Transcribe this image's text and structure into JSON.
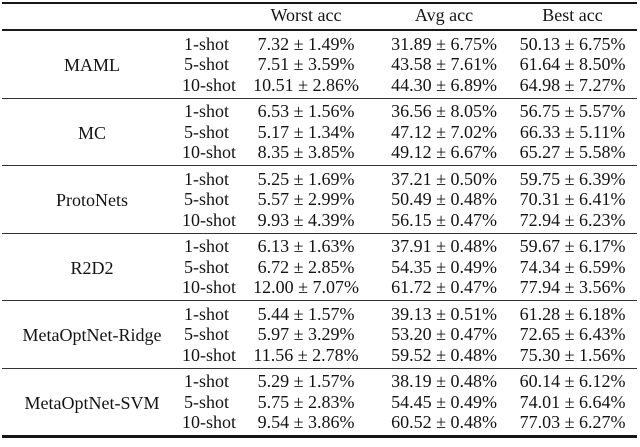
{
  "table": {
    "column_headers": {
      "worst": "Worst acc",
      "avg": "Avg acc",
      "best": "Best acc"
    },
    "sections": [
      {
        "method": "MAML",
        "rows": [
          {
            "shot": "1-shot",
            "worst": "7.32 ± 1.49%",
            "avg": "31.89 ± 6.75%",
            "best": "50.13 ± 6.75%"
          },
          {
            "shot": "5-shot",
            "worst": "7.51 ± 3.59%",
            "avg": "43.58 ± 7.61%",
            "best": "61.64 ± 8.50%"
          },
          {
            "shot": "10-shot",
            "worst": "10.51 ± 2.86%",
            "avg": "44.30 ± 6.89%",
            "best": "64.98 ± 7.27%"
          }
        ]
      },
      {
        "method": "MC",
        "rows": [
          {
            "shot": "1-shot",
            "worst": "6.53 ± 1.56%",
            "avg": "36.56 ± 8.05%",
            "best": "56.75 ± 5.57%"
          },
          {
            "shot": "5-shot",
            "worst": "5.17 ± 1.34%",
            "avg": "47.12 ± 7.02%",
            "best": "66.33 ± 5.11%"
          },
          {
            "shot": "10-shot",
            "worst": "8.35 ± 3.85%",
            "avg": "49.12 ± 6.67%",
            "best": "65.27 ± 5.58%"
          }
        ]
      },
      {
        "method": "ProtoNets",
        "rows": [
          {
            "shot": "1-shot",
            "worst": "5.25 ± 1.69%",
            "avg": "37.21 ± 0.50%",
            "best": "59.75 ± 6.39%"
          },
          {
            "shot": "5-shot",
            "worst": "5.57 ± 2.99%",
            "avg": "50.49 ± 0.48%",
            "best": "70.31 ± 6.41%"
          },
          {
            "shot": "10-shot",
            "worst": "9.93 ± 4.39%",
            "avg": "56.15 ± 0.47%",
            "best": "72.94 ± 6.23%"
          }
        ]
      },
      {
        "method": "R2D2",
        "rows": [
          {
            "shot": "1-shot",
            "worst": "6.13 ± 1.63%",
            "avg": "37.91 ± 0.48%",
            "best": "59.67 ± 6.17%"
          },
          {
            "shot": "5-shot",
            "worst": "6.72 ± 2.85%",
            "avg": "54.35 ± 0.49%",
            "best": "74.34 ± 6.59%"
          },
          {
            "shot": "10-shot",
            "worst": "12.00 ± 7.07%",
            "avg": "61.72 ± 0.47%",
            "best": "77.94 ± 3.56%"
          }
        ]
      },
      {
        "method": "MetaOptNet-Ridge",
        "rows": [
          {
            "shot": "1-shot",
            "worst": "5.44 ± 1.57%",
            "avg": "39.13 ± 0.51%",
            "best": "61.28 ± 6.18%"
          },
          {
            "shot": "5-shot",
            "worst": "5.97 ± 3.29%",
            "avg": "53.20 ± 0.47%",
            "best": "72.65 ± 6.43%"
          },
          {
            "shot": "10-shot",
            "worst": "11.56 ± 2.78%",
            "avg": "59.52 ± 0.48%",
            "best": "75.30 ± 1.56%"
          }
        ]
      },
      {
        "method": "MetaOptNet-SVM",
        "rows": [
          {
            "shot": "1-shot",
            "worst": "5.29 ± 1.57%",
            "avg": "38.19 ± 0.48%",
            "best": "60.14 ± 6.12%"
          },
          {
            "shot": "5-shot",
            "worst": "5.75 ± 2.83%",
            "avg": "54.45 ± 0.49%",
            "best": "74.01 ± 6.64%"
          },
          {
            "shot": "10-shot",
            "worst": "9.54 ± 3.86%",
            "avg": "60.52 ± 0.48%",
            "best": "77.03 ± 6.27%"
          }
        ]
      }
    ]
  }
}
